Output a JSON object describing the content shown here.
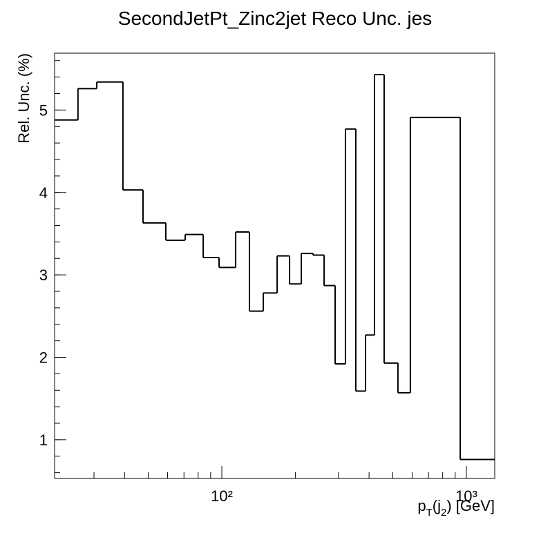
{
  "chart_data": {
    "type": "histogram",
    "title": "SecondJetPt_Zinc2jet Reco Unc. jes",
    "y_label": "Rel. Unc. (%)",
    "x_label": "p_T(j_2) [GeV]",
    "x_log": true,
    "color": "#000000",
    "bins": [
      20.7,
      25.8,
      30.8,
      39.4,
      47.6,
      59,
      70.8,
      83.9,
      97.4,
      113.9,
      129.7,
      147.7,
      168.3,
      189.2,
      211.3,
      236,
      261.9,
      290.6,
      320.3,
      353,
      386.9,
      421,
      461,
      525,
      590,
      944,
      1306
    ],
    "values": [
      4.88,
      5.26,
      5.34,
      4.03,
      3.63,
      3.42,
      3.49,
      3.21,
      3.09,
      3.52,
      2.56,
      2.78,
      3.23,
      2.89,
      3.26,
      3.24,
      2.87,
      1.92,
      4.77,
      1.59,
      2.27,
      5.43,
      1.93,
      1.57,
      4.91,
      0.76
    ],
    "xlim": [
      20.7,
      1306
    ],
    "xticks": [
      {
        "value": 100,
        "label": "10²"
      },
      {
        "value": 1000,
        "label": "10³"
      }
    ],
    "ylim": [
      0.53,
      5.69
    ],
    "yticks": [
      1,
      2,
      3,
      4,
      5
    ]
  }
}
